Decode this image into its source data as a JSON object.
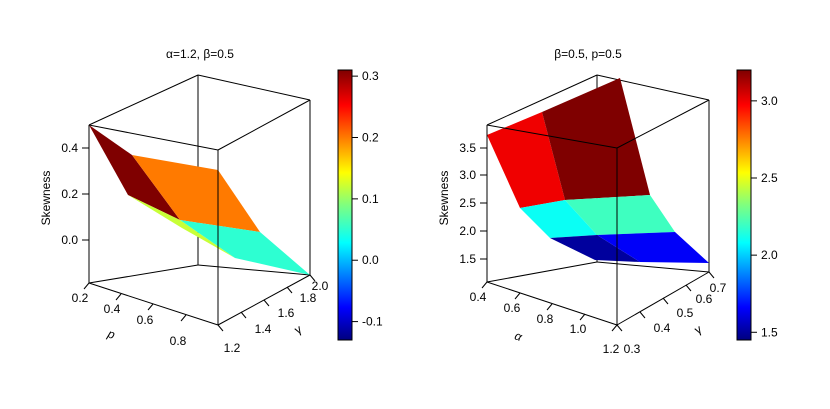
{
  "chart_data": [
    {
      "type": "surface3d",
      "title": "α=1.2, β=0.5",
      "zlabel": "Skewness",
      "xlabel": "p",
      "ylabel": "γ",
      "x_ticks": [
        "0.2",
        "0.4",
        "0.6",
        "0.8"
      ],
      "y_ticks": [
        "1.2",
        "1.4",
        "1.6",
        "1.8",
        "2.0"
      ],
      "z_ticks": [
        "0.0",
        "0.2",
        "0.4"
      ],
      "colorbar_ticks": [
        "-0.1",
        "0.0",
        "0.1",
        "0.2",
        "0.3"
      ],
      "colorbar_range": [
        -0.13,
        0.31
      ],
      "x": [
        0.2,
        0.5,
        0.8
      ],
      "y": [
        1.2,
        1.6,
        2.0
      ],
      "z": [
        [
          0.5,
          0.25,
          0.1
        ],
        [
          0.28,
          0.12,
          -0.03
        ],
        [
          0.12,
          0.0,
          -0.13
        ]
      ],
      "facet_values": [
        [
          0.31,
          0.2
        ],
        [
          0.12,
          0.05
        ]
      ]
    },
    {
      "type": "surface3d",
      "title": "β=0.5, p=0.5",
      "zlabel": "Skewness",
      "xlabel": "α",
      "ylabel": "γ",
      "x_ticks": [
        "0.4",
        "0.6",
        "0.8",
        "1.0",
        "1.2"
      ],
      "y_ticks": [
        "0.3",
        "0.4",
        "0.5",
        "0.6",
        "0.7"
      ],
      "z_ticks": [
        "1.5",
        "2.0",
        "2.5",
        "3.0",
        "3.5"
      ],
      "colorbar_ticks": [
        "1.5",
        "2.0",
        "2.5",
        "3.0"
      ],
      "colorbar_range": [
        1.45,
        3.2
      ],
      "x": [
        0.4,
        0.8,
        1.2
      ],
      "y": [
        0.3,
        0.5,
        0.7
      ],
      "z": [
        [
          3.7,
          2.35,
          1.85
        ],
        [
          3.95,
          2.35,
          1.5
        ],
        [
          4.3,
          2.3,
          1.4
        ]
      ],
      "facet_values": [
        [
          3.0,
          2.1
        ],
        [
          3.2,
          2.2
        ]
      ],
      "lower_facet_values": [
        [
          1.5,
          1.6
        ],
        [
          1.55,
          1.65
        ]
      ]
    }
  ]
}
